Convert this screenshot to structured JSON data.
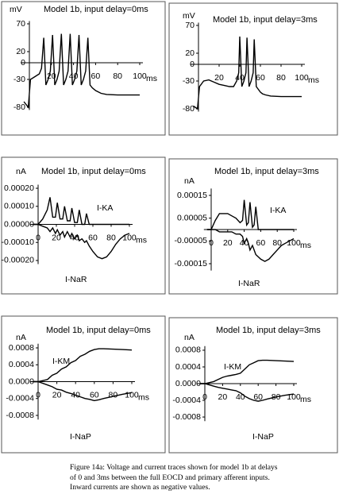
{
  "chart_data": [
    {
      "type": "line",
      "title": "Model 1b, input delay=0ms",
      "ylabel": "mV",
      "xlabel": "ms",
      "x": [
        -5,
        -1,
        1,
        5,
        9,
        11,
        13,
        15,
        17,
        19,
        21,
        23,
        25,
        27,
        29,
        31,
        33,
        35,
        37,
        39,
        41,
        43,
        45,
        47,
        49,
        51,
        53,
        55,
        57,
        60,
        65,
        70,
        80,
        90,
        100
      ],
      "series": [
        {
          "color": "#000000",
          "values": [
            -70,
            -80,
            -30,
            -25,
            -20,
            -10,
            45,
            -40,
            -30,
            -15,
            50,
            -40,
            -30,
            -15,
            52,
            -40,
            -30,
            -15,
            52,
            -40,
            -30,
            -15,
            50,
            -40,
            -30,
            -15,
            45,
            -40,
            -45,
            -50,
            -55,
            -57,
            -58,
            -58,
            -58
          ]
        }
      ],
      "xlim": [
        -5,
        100
      ],
      "ylim": [
        -85,
        75
      ],
      "xticks": [
        20,
        40,
        60,
        80,
        100
      ],
      "yticks": [
        70,
        20,
        0,
        -30,
        -80
      ]
    },
    {
      "type": "line",
      "title": "Model 1b, input delay=3ms",
      "ylabel": "mV",
      "xlabel": "ms",
      "x": [
        -5,
        -1,
        1,
        5,
        10,
        15,
        20,
        25,
        30,
        34,
        37,
        39,
        40,
        42,
        44,
        46,
        47,
        49,
        51,
        53,
        54,
        56,
        58,
        60,
        62,
        65,
        70,
        80,
        90,
        100
      ],
      "series": [
        {
          "color": "#000000",
          "values": [
            -75,
            -80,
            -40,
            -30,
            -28,
            -32,
            -36,
            -38,
            -40,
            -40,
            -30,
            -15,
            50,
            -40,
            -30,
            -15,
            48,
            -40,
            -30,
            -15,
            45,
            -40,
            -45,
            -50,
            -53,
            -55,
            -57,
            -58,
            -58,
            -58
          ]
        }
      ],
      "xlim": [
        -5,
        100
      ],
      "ylim": [
        -85,
        75
      ],
      "xticks": [
        20,
        40,
        60,
        80,
        100
      ],
      "yticks": [
        70,
        20,
        0,
        -30,
        -80
      ]
    },
    {
      "type": "line",
      "title": "Model 1b, input delay=0ms",
      "ylabel": "nA",
      "xlabel": "ms",
      "x": [
        -5,
        0,
        5,
        10,
        13,
        16,
        19,
        21,
        24,
        27,
        29,
        32,
        35,
        37,
        40,
        43,
        45,
        48,
        51,
        53,
        56,
        60,
        65,
        70,
        75,
        80,
        85,
        90,
        95,
        100
      ],
      "series": [
        {
          "name": "I-KA",
          "color": "#000000",
          "values": [
            0,
            0,
            3e-05,
            8e-05,
            0.00015,
            4e-05,
            4e-05,
            0.00012,
            3e-05,
            3e-05,
            0.0001,
            2e-05,
            2e-05,
            9e-05,
            1e-05,
            1e-05,
            8e-05,
            0,
            0,
            6e-05,
            0,
            0,
            0,
            0,
            0,
            0,
            0,
            0,
            0,
            0
          ]
        },
        {
          "name": "I-NaR",
          "color": "#000000",
          "values": [
            0,
            0,
            -1e-05,
            -2e-05,
            -4e-05,
            -2e-05,
            -5e-05,
            -3e-05,
            -6e-05,
            -4e-05,
            -7e-05,
            -4e-05,
            -7e-05,
            -5e-05,
            -8e-05,
            -6e-05,
            -9e-05,
            -8e-05,
            -0.0001,
            -9e-05,
            -0.00012,
            -0.00015,
            -0.00018,
            -0.00019,
            -0.00018,
            -0.00015,
            -0.00011,
            -8e-05,
            -6e-05,
            -5e-05
          ]
        }
      ],
      "xlim": [
        -5,
        100
      ],
      "ylim": [
        -0.00022,
        0.00022
      ],
      "xticks": [
        0,
        20,
        40,
        60,
        80,
        100
      ],
      "yticks": [
        {
          "value": 0.0002,
          "label": "0.00020"
        },
        {
          "value": 0.0001,
          "label": "0.00010"
        },
        {
          "value": 0,
          "label": "0.00000"
        },
        {
          "value": -0.0001,
          "label": "-0.00010"
        },
        {
          "value": -0.0002,
          "label": "-0.00020"
        }
      ]
    },
    {
      "type": "line",
      "title": "Model 1b, input delay=3ms",
      "ylabel": "nA",
      "xlabel": "ms",
      "x": [
        -5,
        0,
        5,
        10,
        15,
        20,
        25,
        30,
        35,
        38,
        40,
        43,
        45,
        47,
        50,
        52,
        54,
        57,
        60,
        65,
        70,
        75,
        80,
        85,
        90,
        95,
        100
      ],
      "series": [
        {
          "name": "I-KA",
          "color": "#000000",
          "values": [
            0,
            0,
            4e-05,
            7e-05,
            7e-05,
            7e-05,
            6e-05,
            5e-05,
            3e-05,
            4e-05,
            0.00013,
            2e-05,
            3e-05,
            0.00012,
            1e-05,
            2e-05,
            0.0001,
            0,
            0,
            0,
            0,
            0,
            0,
            0,
            0,
            0,
            0
          ]
        },
        {
          "name": "I-NaR",
          "color": "#000000",
          "values": [
            0,
            0,
            0,
            -1e-05,
            -1e-05,
            -1e-05,
            -1e-05,
            -2e-05,
            -2e-05,
            -3e-05,
            -6e-05,
            -4e-05,
            -6e-05,
            -9e-05,
            -7e-05,
            -9e-05,
            -0.00011,
            -0.00012,
            -0.00013,
            -0.00014,
            -0.00013,
            -0.00011,
            -9e-05,
            -7e-05,
            -6e-05,
            -5e-05,
            -4e-05
          ]
        }
      ],
      "xlim": [
        -5,
        100
      ],
      "ylim": [
        -0.00018,
        0.00018
      ],
      "xticks": [
        0,
        20,
        40,
        60,
        80,
        100
      ],
      "yticks": [
        {
          "value": 0.00015,
          "label": "0.00015"
        },
        {
          "value": 5e-05,
          "label": "0.00005"
        },
        {
          "value": -5e-05,
          "label": "-0.00005"
        },
        {
          "value": -0.00015,
          "label": "-0.00015"
        }
      ]
    },
    {
      "type": "line",
      "title": "Model 1b, input delay=0ms",
      "ylabel": "nA",
      "xlabel": "ms",
      "x": [
        -5,
        0,
        10,
        15,
        20,
        25,
        30,
        35,
        40,
        45,
        50,
        55,
        60,
        65,
        70,
        80,
        90,
        100
      ],
      "series": [
        {
          "name": "I-KM",
          "color": "#000000",
          "values": [
            0,
            0,
            5e-05,
            0.00015,
            0.0002,
            0.0003,
            0.00035,
            0.00045,
            0.0005,
            0.0006,
            0.00065,
            0.00072,
            0.00076,
            0.00078,
            0.00078,
            0.00077,
            0.00076,
            0.00075
          ]
        },
        {
          "name": "I-NaP",
          "color": "#000000",
          "values": [
            0,
            0,
            -8e-05,
            -0.00012,
            -0.00018,
            -0.0002,
            -0.00025,
            -0.00028,
            -0.00032,
            -0.00036,
            -0.0004,
            -0.00042,
            -0.00045,
            -0.00043,
            -0.0004,
            -0.00035,
            -0.0003,
            -0.00026
          ]
        }
      ],
      "xlim": [
        -5,
        100
      ],
      "ylim": [
        -0.0009,
        0.0009
      ],
      "xticks": [
        0,
        20,
        40,
        60,
        80,
        100
      ],
      "yticks": [
        {
          "value": 0.0008,
          "label": "0.0008"
        },
        {
          "value": 0.0004,
          "label": "0.0004"
        },
        {
          "value": 0,
          "label": "0.0000"
        },
        {
          "value": -0.0004,
          "label": "-0.0004"
        },
        {
          "value": -0.0008,
          "label": "-0.0008"
        }
      ]
    },
    {
      "type": "line",
      "title": "Model 1b, input delay=3ms",
      "ylabel": "nA",
      "xlabel": "ms",
      "x": [
        -5,
        0,
        10,
        15,
        20,
        25,
        30,
        35,
        40,
        45,
        50,
        55,
        60,
        65,
        70,
        80,
        90,
        100
      ],
      "series": [
        {
          "name": "I-KM",
          "color": "#000000",
          "values": [
            0,
            0,
            5e-05,
            0.0001,
            0.00015,
            0.00018,
            0.0002,
            0.00022,
            0.00025,
            0.00035,
            0.00045,
            0.0005,
            0.00055,
            0.00056,
            0.00056,
            0.00055,
            0.00054,
            0.00053
          ]
        },
        {
          "name": "I-NaP",
          "color": "#000000",
          "values": [
            0,
            0,
            -6e-05,
            -9e-05,
            -0.00011,
            -0.00013,
            -0.00015,
            -0.00017,
            -0.00022,
            -0.0003,
            -0.00036,
            -0.0004,
            -0.00042,
            -0.0004,
            -0.00037,
            -0.00032,
            -0.00028,
            -0.00025
          ]
        }
      ],
      "xlim": [
        -5,
        100
      ],
      "ylim": [
        -0.0009,
        0.0009
      ],
      "xticks": [
        0,
        20,
        40,
        60,
        80,
        100
      ],
      "yticks": [
        {
          "value": 0.0008,
          "label": "0.0008"
        },
        {
          "value": 0.0004,
          "label": "0.0004"
        },
        {
          "value": 0,
          "label": "0.0000"
        },
        {
          "value": -0.0004,
          "label": "-0.0004"
        },
        {
          "value": -0.0008,
          "label": "-0.0008"
        }
      ]
    }
  ],
  "caption": "Figure 14a:  Voltage and current traces shown for model 1b at delays of 0 and 3ms between the full EOCD and primary afferent inputs. Inward currents are shown as negative values."
}
